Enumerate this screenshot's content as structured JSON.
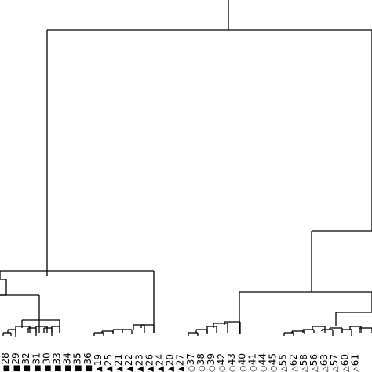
{
  "leaves": [
    {
      "label": "28",
      "marker": "square-filled"
    },
    {
      "label": "29",
      "marker": "square-filled"
    },
    {
      "label": "32",
      "marker": "square-filled"
    },
    {
      "label": "31",
      "marker": "square-filled"
    },
    {
      "label": "30",
      "marker": "square-filled"
    },
    {
      "label": "33",
      "marker": "square-filled"
    },
    {
      "label": "34",
      "marker": "square-filled"
    },
    {
      "label": "35",
      "marker": "square-filled"
    },
    {
      "label": "36",
      "marker": "square-filled"
    },
    {
      "label": "19",
      "marker": "triangle-filled"
    },
    {
      "label": "25",
      "marker": "triangle-filled"
    },
    {
      "label": "21",
      "marker": "triangle-filled"
    },
    {
      "label": "22",
      "marker": "triangle-filled"
    },
    {
      "label": "23",
      "marker": "triangle-filled"
    },
    {
      "label": "26",
      "marker": "triangle-filled"
    },
    {
      "label": "24",
      "marker": "triangle-filled"
    },
    {
      "label": "20",
      "marker": "triangle-filled"
    },
    {
      "label": "27",
      "marker": "triangle-filled"
    },
    {
      "label": "37",
      "marker": "circle-open"
    },
    {
      "label": "38",
      "marker": "circle-open"
    },
    {
      "label": "39",
      "marker": "circle-open"
    },
    {
      "label": "42",
      "marker": "circle-open"
    },
    {
      "label": "43",
      "marker": "circle-open"
    },
    {
      "label": "40",
      "marker": "circle-open"
    },
    {
      "label": "41",
      "marker": "circle-open"
    },
    {
      "label": "44",
      "marker": "circle-open"
    },
    {
      "label": "45",
      "marker": "circle-open"
    },
    {
      "label": "55",
      "marker": "triangle-open"
    },
    {
      "label": "62",
      "marker": "triangle-open"
    },
    {
      "label": "58",
      "marker": "triangle-open"
    },
    {
      "label": "56",
      "marker": "triangle-open"
    },
    {
      "label": "63",
      "marker": "triangle-open"
    },
    {
      "label": "57",
      "marker": "triangle-open"
    },
    {
      "label": "60",
      "marker": "triangle-open"
    },
    {
      "label": "61",
      "marker": "triangle-open"
    }
  ],
  "colors": {
    "line": "#000000",
    "background": "#ffffff"
  }
}
